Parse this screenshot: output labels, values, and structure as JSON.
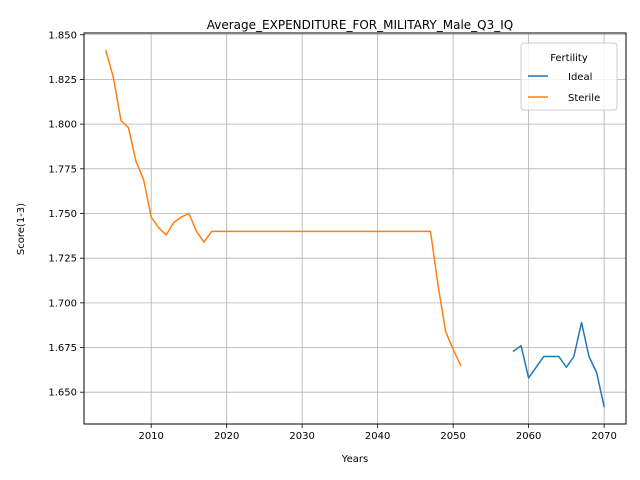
{
  "chart_data": {
    "type": "line",
    "title": "Average_EXPENDITURE_FOR_MILITARY_Male_Q3_IQ",
    "xlabel": "Years",
    "ylabel": "Score(1-3)",
    "xlim": [
      2001.1,
      2072.9
    ],
    "ylim": [
      1.6322,
      1.851
    ],
    "xticks": [
      2010,
      2020,
      2030,
      2040,
      2050,
      2060,
      2070
    ],
    "yticks": [
      1.65,
      1.675,
      1.7,
      1.725,
      1.75,
      1.775,
      1.8,
      1.825,
      1.85
    ],
    "xtick_labels": [
      "2010",
      "2020",
      "2030",
      "2040",
      "2050",
      "2060",
      "2070"
    ],
    "ytick_labels": [
      "1.650",
      "1.675",
      "1.700",
      "1.725",
      "1.750",
      "1.775",
      "1.800",
      "1.825",
      "1.850"
    ],
    "grid": true,
    "legend": {
      "title": "Fertility",
      "placement": "top-right"
    },
    "series": [
      {
        "name": "Ideal",
        "color": "#1f77b4",
        "x": [
          2058,
          2059,
          2060,
          2061,
          2062,
          2063,
          2064,
          2065,
          2066,
          2067,
          2068,
          2069,
          2070
        ],
        "y": [
          1.673,
          1.676,
          1.658,
          1.664,
          1.67,
          1.67,
          1.67,
          1.664,
          1.67,
          1.689,
          1.67,
          1.661,
          1.642
        ]
      },
      {
        "name": "Sterile",
        "color": "#ff7f0e",
        "x": [
          2004,
          2005,
          2006,
          2007,
          2008,
          2009,
          2010,
          2011,
          2012,
          2013,
          2014,
          2015,
          2016,
          2017,
          2018,
          2019,
          2020,
          2025,
          2030,
          2035,
          2040,
          2045,
          2046,
          2047,
          2048,
          2049,
          2050,
          2051
        ],
        "y": [
          1.841,
          1.826,
          1.802,
          1.798,
          1.779,
          1.769,
          1.748,
          1.742,
          1.738,
          1.745,
          1.748,
          1.75,
          1.74,
          1.734,
          1.74,
          1.74,
          1.74,
          1.74,
          1.74,
          1.74,
          1.74,
          1.74,
          1.74,
          1.74,
          1.71,
          1.684,
          1.674,
          1.665
        ]
      }
    ]
  }
}
